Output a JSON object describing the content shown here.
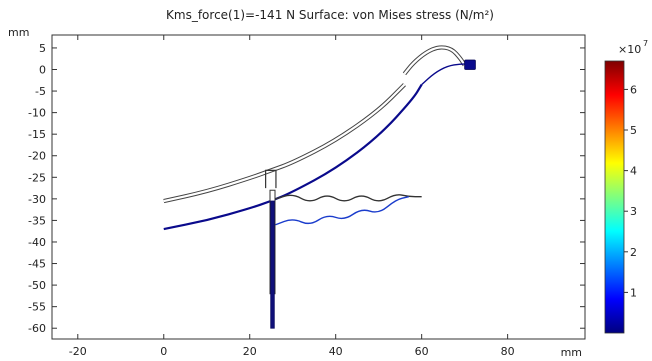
{
  "chart_data": {
    "type": "line",
    "title": "Kms_force(1)=-141 N   Surface: von Mises stress (N/m²)",
    "xunit": "mm",
    "yunit": "mm",
    "xlim": [
      -26,
      98
    ],
    "ylim": [
      -62.5,
      8
    ],
    "xticks": [
      -20,
      0,
      20,
      40,
      60,
      80
    ],
    "yticks": [
      5,
      0,
      -5,
      -10,
      -15,
      -20,
      -25,
      -30,
      -35,
      -40,
      -45,
      -50,
      -55,
      -60
    ],
    "grid": false,
    "colorbar": {
      "multiplier": "×10",
      "exponent": "7",
      "min": 0,
      "max": 6.7,
      "ticks": [
        1,
        2,
        3,
        4,
        5,
        6
      ],
      "colors": [
        "#00007f",
        "#0000ff",
        "#007fff",
        "#00ffff",
        "#7fff7f",
        "#ffff00",
        "#ff7f00",
        "#ff0000",
        "#7f0000"
      ]
    },
    "series": [
      {
        "role": "undeformed-cone",
        "color": "#444444",
        "x": [
          0,
          10,
          20,
          25,
          30,
          40,
          50,
          56
        ],
        "y": [
          -30.5,
          -28.3,
          -25.2,
          -23.4,
          -21.6,
          -16.5,
          -9.5,
          -3.5
        ]
      },
      {
        "role": "deformed-cone",
        "color": "#0a0a8c",
        "x": [
          0,
          10,
          20,
          25,
          30,
          40,
          50,
          58,
          60
        ],
        "y": [
          -37,
          -35,
          -32.2,
          -30.5,
          -28.4,
          -23,
          -15.5,
          -6.8,
          -3.5
        ]
      },
      {
        "role": "undeformed-surround",
        "color": "#444444",
        "x": [
          56,
          58,
          61,
          64,
          67,
          69,
          70
        ],
        "y": [
          -1,
          1.5,
          4,
          5.3,
          4.8,
          2.6,
          1
        ]
      },
      {
        "role": "deformed-surround",
        "color": "#0a0a8c",
        "x": [
          60,
          63,
          66,
          69,
          72
        ],
        "y": [
          -3.5,
          -0.8,
          0.8,
          1.3,
          1.3
        ]
      },
      {
        "role": "undeformed-spider",
        "color": "#333333",
        "x": [
          26,
          30,
          34,
          38,
          42,
          46,
          50,
          54,
          57,
          60
        ],
        "y": [
          -30,
          -28.8,
          -31,
          -28.8,
          -31,
          -28.8,
          -31,
          -28.8,
          -29.5,
          -29.5
        ]
      },
      {
        "role": "deformed-spider",
        "color": "#1a3ccc",
        "x": [
          26,
          30,
          34,
          38,
          42,
          46,
          50,
          54,
          57
        ],
        "y": [
          -36,
          -34.5,
          -36.2,
          -33.6,
          -35,
          -32.2,
          -33.5,
          -30.2,
          -29.5
        ]
      }
    ],
    "voice_coil": {
      "undeformed": {
        "x": 25.3,
        "y": [
          -28,
          -52
        ]
      },
      "deformed": {
        "x": 25.3,
        "y": [
          -30.5,
          -60
        ]
      },
      "former": {
        "x": 24.5,
        "y": [
          -23.4,
          -27.5
        ]
      }
    },
    "magnet_block": {
      "x": [
        70,
        72.5
      ],
      "y": [
        0,
        2.2
      ]
    }
  }
}
